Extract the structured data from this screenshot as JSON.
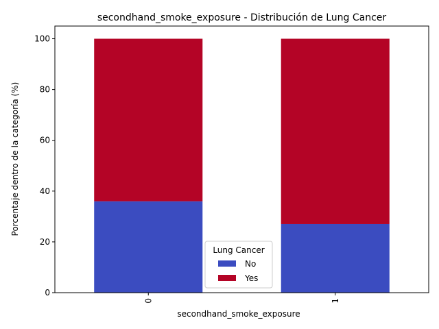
{
  "chart_data": {
    "type": "bar",
    "stacked": true,
    "title": "secondhand_smoke_exposure - Distribución de Lung Cancer",
    "xlabel": "secondhand_smoke_exposure",
    "ylabel": "Porcentaje dentro de la categoría (%)",
    "categories": [
      "0",
      "1"
    ],
    "ylim": [
      0,
      105
    ],
    "yticks": [
      "0",
      "20",
      "40",
      "60",
      "80",
      "100"
    ],
    "series": [
      {
        "name": "No",
        "values": [
          36,
          27
        ],
        "color": "#3b4cc0"
      },
      {
        "name": "Yes",
        "values": [
          64,
          73
        ],
        "color": "#b40426"
      }
    ],
    "legend": {
      "title": "Lung Cancer",
      "placement": "lower-center"
    },
    "grid": false
  }
}
